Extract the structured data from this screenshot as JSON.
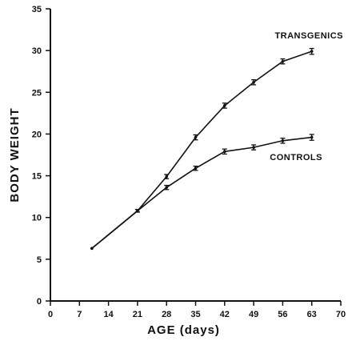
{
  "chart_data": {
    "type": "line",
    "title": "",
    "xlabel": "AGE (days)",
    "ylabel": "BODY WEIGHT",
    "xlim": [
      0,
      70
    ],
    "ylim": [
      0,
      35
    ],
    "xticks": [
      0,
      7,
      14,
      21,
      28,
      35,
      42,
      49,
      56,
      63,
      70
    ],
    "yticks": [
      0,
      5,
      10,
      15,
      20,
      25,
      30,
      35
    ],
    "grid": false,
    "legend": "inline labels",
    "series": [
      {
        "name": "TRANSGENICS",
        "x": [
          10,
          21,
          28,
          35,
          42,
          49,
          56,
          63
        ],
        "y": [
          6.3,
          10.8,
          14.9,
          19.6,
          23.4,
          26.2,
          28.7,
          29.9
        ],
        "err": [
          0,
          0.15,
          0.25,
          0.3,
          0.3,
          0.3,
          0.3,
          0.35
        ]
      },
      {
        "name": "CONTROLS",
        "x": [
          10,
          21,
          28,
          35,
          42,
          49,
          56,
          63
        ],
        "y": [
          6.3,
          10.8,
          13.6,
          15.9,
          17.9,
          18.4,
          19.2,
          19.6
        ],
        "err": [
          0,
          0.15,
          0.25,
          0.25,
          0.3,
          0.3,
          0.3,
          0.35
        ]
      }
    ]
  }
}
